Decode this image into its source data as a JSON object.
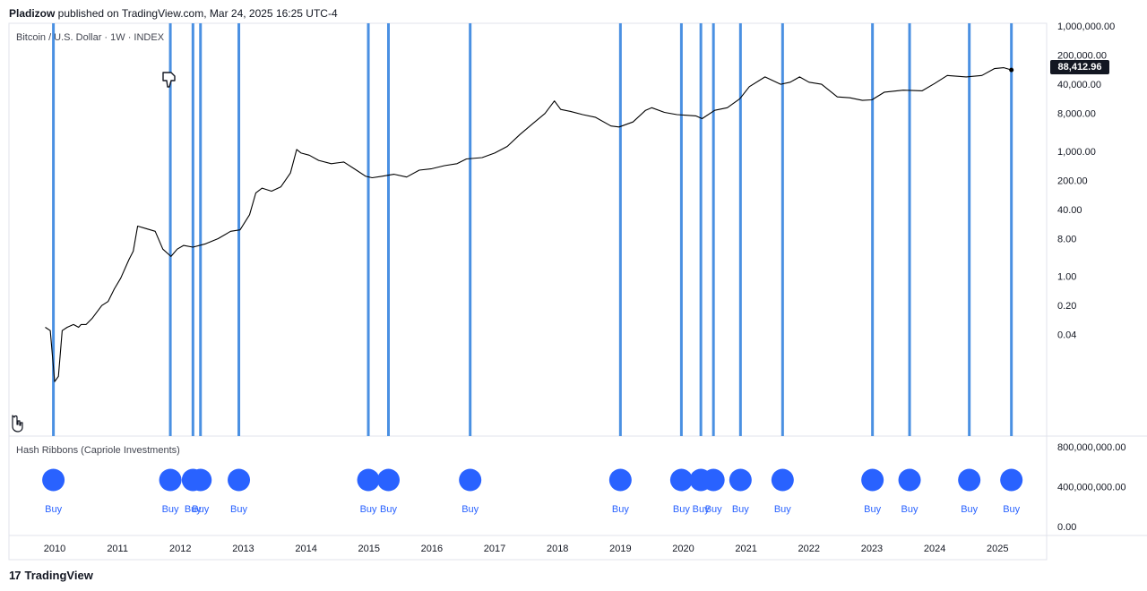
{
  "header": {
    "author": "Pladizow",
    "text": " published on TradingView.com, Mar 24, 2025 16:25 UTC-4"
  },
  "footer": {
    "logo": "17",
    "brand": "TradingView"
  },
  "colors": {
    "signal_line": "#4a90e2",
    "dot": "#2962ff",
    "price_line": "#000000",
    "grid": "#e0e3eb"
  },
  "icons": [
    "thumbs-down-icon",
    "hand-pointer-icon"
  ],
  "chart_data": [
    {
      "type": "line",
      "title": "Bitcoin / U.S. Dollar · 1W · INDEX",
      "scale": "log",
      "y_tick_labels": [
        "1,000,000.00",
        "200,000.00",
        "40,000.00",
        "8,000.00",
        "1,000.00",
        "200.00",
        "40.00",
        "8.00",
        "1.00",
        "0.20",
        "0.04"
      ],
      "y_ticks": [
        1000000,
        200000,
        40000,
        8000,
        1000,
        200,
        40,
        8,
        1,
        0.2,
        0.04
      ],
      "x_tick_labels": [
        "2010",
        "2011",
        "2012",
        "2013",
        "2014",
        "2015",
        "2016",
        "2017",
        "2018",
        "2019",
        "2020",
        "2021",
        "2022",
        "2023",
        "2024",
        "2025"
      ],
      "x_ticks": [
        2010,
        2011,
        2012,
        2013,
        2014,
        2015,
        2016,
        2017,
        2018,
        2019,
        2020,
        2021,
        2022,
        2023,
        2024,
        2025
      ],
      "last_value_label": "88,412.96",
      "series": [
        {
          "x": [
            2009.85,
            2009.93,
            2010.0,
            2010.06,
            2010.12,
            2010.2,
            2010.3,
            2010.38,
            2010.42,
            2010.5,
            2010.6,
            2010.75,
            2010.85,
            2010.95,
            2011.05,
            2011.18,
            2011.25,
            2011.32,
            2011.45,
            2011.6,
            2011.72,
            2011.85,
            2011.95,
            2012.05,
            2012.2,
            2012.4,
            2012.6,
            2012.8,
            2012.95,
            2013.1,
            2013.2,
            2013.3,
            2013.45,
            2013.6,
            2013.75,
            2013.85,
            2013.92,
            2014.05,
            2014.2,
            2014.4,
            2014.6,
            2014.8,
            2014.95,
            2015.05,
            2015.2,
            2015.4,
            2015.6,
            2015.8,
            2016.0,
            2016.2,
            2016.4,
            2016.55,
            2016.8,
            2017.0,
            2017.2,
            2017.4,
            2017.6,
            2017.8,
            2017.95,
            2018.05,
            2018.2,
            2018.4,
            2018.6,
            2018.85,
            2018.98,
            2019.2,
            2019.4,
            2019.5,
            2019.7,
            2019.9,
            2020.2,
            2020.3,
            2020.5,
            2020.7,
            2020.9,
            2021.05,
            2021.3,
            2021.55,
            2021.7,
            2021.85,
            2022.0,
            2022.2,
            2022.45,
            2022.65,
            2022.85,
            2023.0,
            2023.2,
            2023.5,
            2023.8,
            2024.0,
            2024.2,
            2024.5,
            2024.75,
            2024.95,
            2025.1,
            2025.22
          ],
          "values": [
            0.06,
            0.05,
            0.003,
            0.004,
            0.05,
            0.06,
            0.07,
            0.06,
            0.07,
            0.07,
            0.1,
            0.2,
            0.25,
            0.5,
            0.9,
            2.5,
            4.0,
            16,
            14,
            12,
            4.5,
            3.0,
            4.5,
            5.5,
            5.0,
            6.0,
            8.0,
            12,
            13,
            30,
            100,
            130,
            110,
            140,
            300,
            1100,
            900,
            800,
            600,
            500,
            550,
            350,
            250,
            230,
            250,
            280,
            240,
            350,
            380,
            450,
            500,
            650,
            700,
            900,
            1300,
            2500,
            4500,
            8000,
            16000,
            10000,
            9000,
            7500,
            6500,
            4000,
            3800,
            5000,
            9500,
            11000,
            8500,
            7500,
            7000,
            6000,
            9500,
            11000,
            18000,
            35000,
            60000,
            40000,
            45000,
            60000,
            45000,
            40000,
            20000,
            19000,
            16500,
            17000,
            26000,
            29000,
            28000,
            42000,
            65000,
            60000,
            65000,
            95000,
            100000,
            88412.96
          ]
        }
      ]
    },
    {
      "type": "scatter",
      "title": "Hash Ribbons (Capriole Investments)",
      "y_tick_labels": [
        "800,000,000.00",
        "400,000,000.00",
        "0.00"
      ],
      "y_ticks": [
        800000000,
        400000000,
        0
      ],
      "signal_label": "Buy",
      "signals": [
        {
          "x": 2009.98,
          "label": "Buy"
        },
        {
          "x": 2011.84,
          "label": "Buy"
        },
        {
          "x": 2012.2,
          "label": "Buy"
        },
        {
          "x": 2012.32,
          "label": "Buy"
        },
        {
          "x": 2012.93,
          "label": "Buy"
        },
        {
          "x": 2014.99,
          "label": "Buy"
        },
        {
          "x": 2015.31,
          "label": "Buy"
        },
        {
          "x": 2016.61,
          "label": "Buy"
        },
        {
          "x": 2019.0,
          "label": "Buy"
        },
        {
          "x": 2019.97,
          "label": "Buy"
        },
        {
          "x": 2020.28,
          "label": "Buy"
        },
        {
          "x": 2020.48,
          "label": "Buy"
        },
        {
          "x": 2020.91,
          "label": "Buy"
        },
        {
          "x": 2021.58,
          "label": "Buy"
        },
        {
          "x": 2023.01,
          "label": "Buy"
        },
        {
          "x": 2023.6,
          "label": "Buy"
        },
        {
          "x": 2024.55,
          "label": "Buy"
        },
        {
          "x": 2025.22,
          "label": "Buy"
        }
      ]
    }
  ]
}
